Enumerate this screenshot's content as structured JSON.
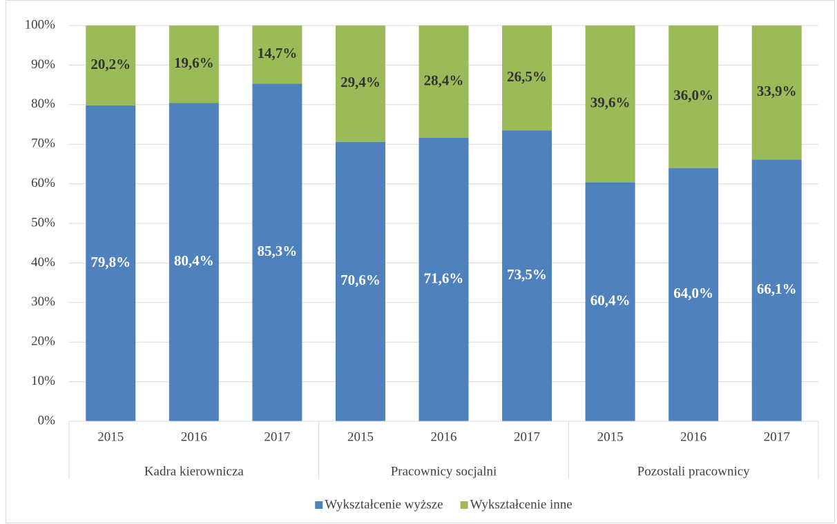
{
  "chart_data": {
    "type": "stacked_bar",
    "categories": [
      "2015",
      "2016",
      "2017",
      "2015",
      "2016",
      "2017",
      "2015",
      "2016",
      "2017"
    ],
    "groups": [
      "Kadra kierownicza",
      "Pracownicy socjalni",
      "Pozostali pracownicy"
    ],
    "series": [
      {
        "name": "Wykształcenie wyższe",
        "color": "#4f81bd",
        "values": [
          79.8,
          80.4,
          85.3,
          70.6,
          71.6,
          73.5,
          60.4,
          64.0,
          66.1
        ],
        "value_labels": [
          "79,8%",
          "80,4%",
          "85,3%",
          "70,6%",
          "71,6%",
          "73,5%",
          "60,4%",
          "64,0%",
          "66,1%"
        ]
      },
      {
        "name": "Wykształcenie inne",
        "color": "#9bbb59",
        "values": [
          20.2,
          19.6,
          14.7,
          29.4,
          28.4,
          26.5,
          39.6,
          36.0,
          33.9
        ],
        "value_labels": [
          "20,2%",
          "19,6%",
          "14,7%",
          "29,4%",
          "28,4%",
          "26,5%",
          "39,6%",
          "36,0%",
          "33,9%"
        ]
      }
    ],
    "ylim": [
      0,
      100
    ],
    "yticks": [
      {
        "value": 0,
        "label": "0%"
      },
      {
        "value": 10,
        "label": "10%"
      },
      {
        "value": 20,
        "label": "20%"
      },
      {
        "value": 30,
        "label": "30%"
      },
      {
        "value": 40,
        "label": "40%"
      },
      {
        "value": 50,
        "label": "50%"
      },
      {
        "value": 60,
        "label": "60%"
      },
      {
        "value": 70,
        "label": "70%"
      },
      {
        "value": 80,
        "label": "80%"
      },
      {
        "value": 90,
        "label": "90%"
      },
      {
        "value": 100,
        "label": "100%"
      }
    ],
    "grid": true,
    "legend": "bottom"
  }
}
